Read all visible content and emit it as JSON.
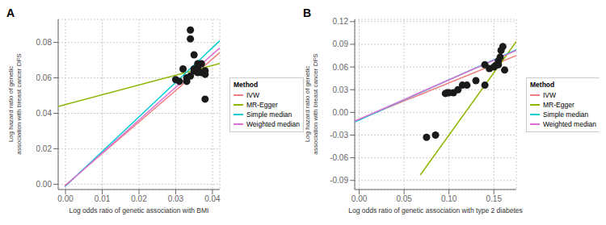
{
  "chart_data": [
    {
      "type": "scatter",
      "title": "A",
      "x_label": "Log odds ratio of genetic association with BMI",
      "y_label": "Log hazard ratio of genetic association with breast cancer DFS",
      "xlim": [
        -0.002,
        0.042
      ],
      "ylim": [
        -0.003,
        0.093
      ],
      "xticks": [
        {
          "value": 0,
          "label": "0.00"
        },
        0.01,
        0.02,
        0.03,
        0.04
      ],
      "yticks": [
        {
          "value": 0,
          "label": "0.00"
        },
        0.02,
        0.04,
        0.06,
        0.08
      ],
      "grid": true,
      "legend": "right",
      "legend_title": "Method",
      "series": [
        {
          "type": "line",
          "name": "IVW",
          "color": "#F08080",
          "x": [
            -0.0002,
            0.042
          ],
          "values": [
            -0.000856,
            0.07426
          ]
        },
        {
          "type": "line",
          "name": "MR-Egger",
          "color": "#8DB600",
          "x": [
            -0.002,
            0.042
          ],
          "values": [
            0.0439,
            0.0681
          ]
        },
        {
          "type": "line",
          "name": "Simple median",
          "color": "#00CED1",
          "x": [
            -0.0002,
            0.042
          ],
          "values": [
            -0.00139,
            0.0809
          ]
        },
        {
          "type": "line",
          "name": "Weighted median",
          "color": "#DA70D6",
          "x": [
            -0.0002,
            0.042
          ],
          "values": [
            -0.00117,
            0.0769
          ]
        },
        {
          "type": "scatter",
          "marker": "circle",
          "color": "#1a1a1a",
          "x": [
            0.03,
            0.031,
            0.032,
            0.033,
            0.034,
            0.034,
            0.035,
            0.035,
            0.036,
            0.036,
            0.036,
            0.037,
            0.037,
            0.038,
            0.038,
            0.038,
            0.033,
            0.034,
            0.035,
            0.036
          ],
          "values": [
            0.059,
            0.058,
            0.065,
            0.058,
            0.082,
            0.087,
            0.073,
            0.064,
            0.068,
            0.064,
            0.063,
            0.068,
            0.063,
            0.064,
            0.062,
            0.048,
            0.06,
            0.061,
            0.065,
            0.066
          ]
        }
      ]
    },
    {
      "type": "scatter",
      "title": "B",
      "x_label": "Log odds ratio of genetic association with type 2 diabetes",
      "y_label": "Log hazard ratio of genetic association with breast cancer DFS",
      "xlim": [
        -0.005,
        0.175
      ],
      "ylim": [
        -0.102,
        0.123
      ],
      "xticks": [
        {
          "value": 0,
          "label": "0.00"
        },
        0.05,
        {
          "value": 0.1,
          "label": "0.10"
        },
        0.15
      ],
      "yticks": [
        -0.09,
        -0.06,
        -0.03,
        {
          "value": 0,
          "label": "0.00"
        },
        0.03,
        0.06,
        0.09,
        0.12
      ],
      "grid": true,
      "legend": "right",
      "legend_title": "Method",
      "series": [
        {
          "type": "line",
          "name": "IVW",
          "color": "#F08080",
          "x": [
            -0.005,
            0.175
          ],
          "values": [
            -0.0114,
            0.075
          ]
        },
        {
          "type": "line",
          "name": "MR-Egger",
          "color": "#8DB600",
          "x": [
            0.068,
            0.175
          ],
          "values": [
            -0.0828,
            0.09375
          ]
        },
        {
          "type": "line",
          "name": "Simple median",
          "color": "#00CED1",
          "x": [
            -0.005,
            0.175
          ],
          "values": [
            -0.01265,
            0.08275
          ]
        },
        {
          "type": "line",
          "name": "Weighted median",
          "color": "#DA70D6",
          "x": [
            -0.005,
            0.175
          ],
          "values": [
            -0.0116,
            0.082
          ]
        },
        {
          "type": "scatter",
          "marker": "circle",
          "color": "#1a1a1a",
          "x": [
            0.075,
            0.085,
            0.096,
            0.098,
            0.1,
            0.105,
            0.11,
            0.115,
            0.12,
            0.13,
            0.14,
            0.145,
            0.15,
            0.152,
            0.155,
            0.157,
            0.158,
            0.16,
            0.162,
            0.155,
            0.14
          ],
          "values": [
            -0.033,
            -0.03,
            0.025,
            0.026,
            0.026,
            0.026,
            0.03,
            0.036,
            0.036,
            0.042,
            0.036,
            0.058,
            0.06,
            0.062,
            0.068,
            0.073,
            0.082,
            0.087,
            0.056,
            0.063,
            0.063
          ]
        }
      ]
    }
  ]
}
